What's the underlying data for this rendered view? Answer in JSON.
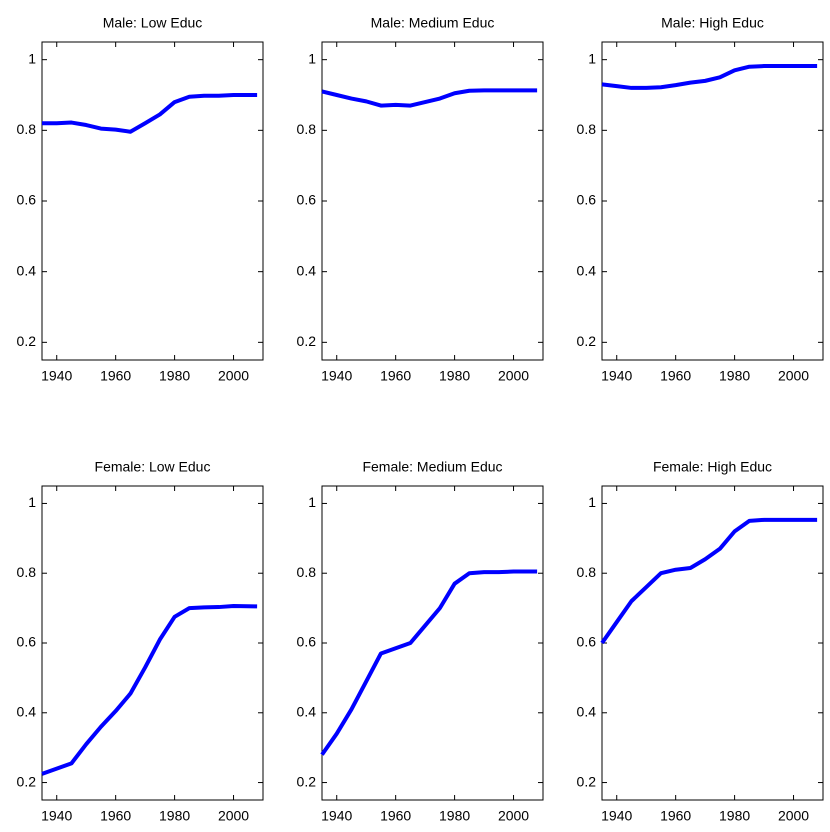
{
  "chart_data": [
    {
      "type": "line",
      "title": "Male: Low Educ",
      "x": [
        1935,
        1940,
        1945,
        1950,
        1955,
        1960,
        1965,
        1970,
        1975,
        1980,
        1985,
        1990,
        1995,
        2000,
        2008
      ],
      "values": [
        0.82,
        0.82,
        0.822,
        0.815,
        0.805,
        0.802,
        0.796,
        0.82,
        0.845,
        0.88,
        0.895,
        0.898,
        0.898,
        0.9,
        0.9
      ],
      "color": "#0000ff",
      "xlim": [
        1935,
        2010
      ],
      "ylim": [
        0.15,
        1.05
      ],
      "xticks": [
        1940,
        1960,
        1980,
        2000
      ],
      "yticks": [
        0.2,
        0.4,
        0.6,
        0.8,
        1
      ]
    },
    {
      "type": "line",
      "title": "Male: Medium Educ",
      "x": [
        1935,
        1940,
        1945,
        1950,
        1955,
        1960,
        1965,
        1970,
        1975,
        1980,
        1985,
        1990,
        1995,
        2000,
        2008
      ],
      "values": [
        0.91,
        0.9,
        0.89,
        0.882,
        0.87,
        0.872,
        0.87,
        0.88,
        0.89,
        0.905,
        0.912,
        0.913,
        0.913,
        0.913,
        0.913
      ],
      "color": "#0000ff",
      "xlim": [
        1935,
        2010
      ],
      "ylim": [
        0.15,
        1.05
      ],
      "xticks": [
        1940,
        1960,
        1980,
        2000
      ],
      "yticks": [
        0.2,
        0.4,
        0.6,
        0.8,
        1
      ]
    },
    {
      "type": "line",
      "title": "Male: High Educ",
      "x": [
        1935,
        1940,
        1945,
        1950,
        1955,
        1960,
        1965,
        1970,
        1975,
        1980,
        1985,
        1990,
        1995,
        2000,
        2008
      ],
      "values": [
        0.93,
        0.925,
        0.92,
        0.92,
        0.922,
        0.928,
        0.935,
        0.94,
        0.95,
        0.97,
        0.98,
        0.982,
        0.982,
        0.982,
        0.982
      ],
      "color": "#0000ff",
      "xlim": [
        1935,
        2010
      ],
      "ylim": [
        0.15,
        1.05
      ],
      "xticks": [
        1940,
        1960,
        1980,
        2000
      ],
      "yticks": [
        0.2,
        0.4,
        0.6,
        0.8,
        1
      ]
    },
    {
      "type": "line",
      "title": "Female: Low Educ",
      "x": [
        1935,
        1940,
        1945,
        1950,
        1955,
        1960,
        1965,
        1970,
        1975,
        1980,
        1985,
        1990,
        1995,
        2000,
        2008
      ],
      "values": [
        0.225,
        0.24,
        0.255,
        0.31,
        0.36,
        0.405,
        0.455,
        0.53,
        0.61,
        0.675,
        0.7,
        0.702,
        0.703,
        0.706,
        0.705
      ],
      "color": "#0000ff",
      "xlim": [
        1935,
        2010
      ],
      "ylim": [
        0.15,
        1.05
      ],
      "xticks": [
        1940,
        1960,
        1980,
        2000
      ],
      "yticks": [
        0.2,
        0.4,
        0.6,
        0.8,
        1
      ]
    },
    {
      "type": "line",
      "title": "Female: Medium Educ",
      "x": [
        1935,
        1940,
        1945,
        1950,
        1955,
        1960,
        1965,
        1970,
        1975,
        1980,
        1985,
        1990,
        1995,
        2000,
        2008
      ],
      "values": [
        0.28,
        0.34,
        0.41,
        0.49,
        0.57,
        0.585,
        0.6,
        0.65,
        0.7,
        0.77,
        0.8,
        0.803,
        0.803,
        0.805,
        0.805
      ],
      "color": "#0000ff",
      "xlim": [
        1935,
        2010
      ],
      "ylim": [
        0.15,
        1.05
      ],
      "xticks": [
        1940,
        1960,
        1980,
        2000
      ],
      "yticks": [
        0.2,
        0.4,
        0.6,
        0.8,
        1
      ]
    },
    {
      "type": "line",
      "title": "Female: High Educ",
      "x": [
        1935,
        1940,
        1945,
        1950,
        1955,
        1960,
        1965,
        1970,
        1975,
        1980,
        1985,
        1990,
        1995,
        2000,
        2008
      ],
      "values": [
        0.6,
        0.66,
        0.72,
        0.76,
        0.8,
        0.81,
        0.815,
        0.84,
        0.87,
        0.92,
        0.95,
        0.953,
        0.953,
        0.953,
        0.953
      ],
      "color": "#0000ff",
      "xlim": [
        1935,
        2010
      ],
      "ylim": [
        0.15,
        1.05
      ],
      "xticks": [
        1940,
        1960,
        1980,
        2000
      ],
      "yticks": [
        0.2,
        0.4,
        0.6,
        0.8,
        1
      ]
    }
  ]
}
